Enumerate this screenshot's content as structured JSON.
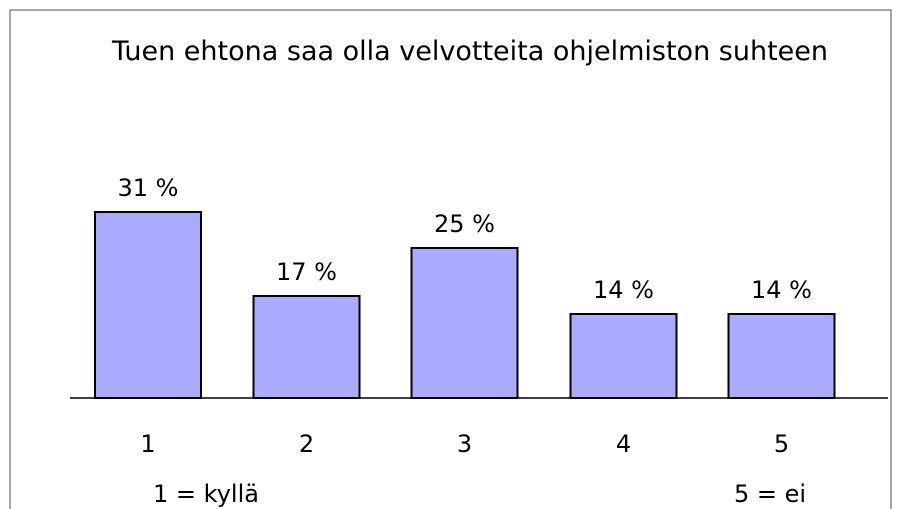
{
  "chart_data": {
    "type": "bar",
    "title": "Tuen ehtona saa olla velvotteita ohjelmiston suhteen",
    "categories": [
      "1",
      "2",
      "3",
      "4",
      "5"
    ],
    "values": [
      31,
      17,
      25,
      14,
      14
    ],
    "value_labels": [
      "31 %",
      "17 %",
      "25 %",
      "14 %",
      "14 %"
    ],
    "color": "#aaaaff",
    "annotations": [
      "1 = kyllä",
      "5 = ei"
    ]
  }
}
